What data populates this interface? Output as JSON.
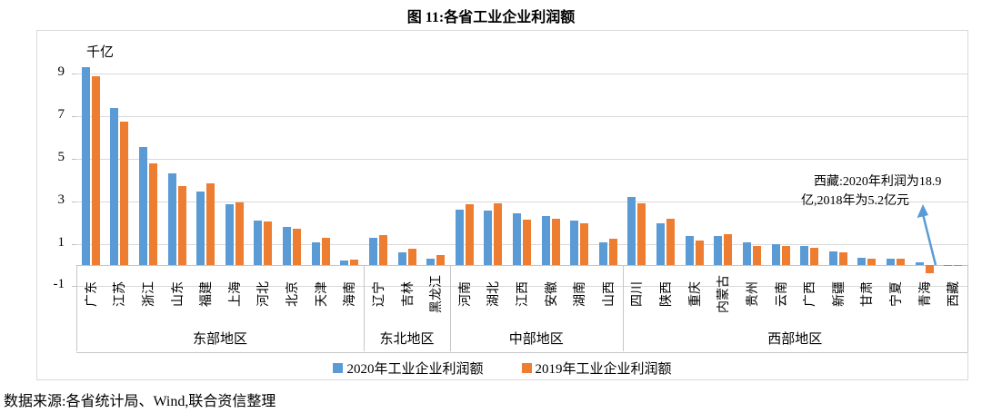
{
  "title": "图 11:各省工业企业利润额",
  "footer": "数据来源:各省统计局、Wind,联合资信整理",
  "colors": {
    "series_2020": "#5B9BD5",
    "series_2019": "#ED7D31",
    "gridline": "#D9D9D9",
    "annotation_arrow": "#5B9BD5"
  },
  "chart_data": {
    "type": "bar",
    "title": "图 11:各省工业企业利润额",
    "unit_label": "千亿",
    "ylabel": "千亿",
    "y_ticks": [
      9,
      7,
      5,
      3,
      1,
      -1
    ],
    "ylim": [
      -1.5,
      9.9
    ],
    "grid": true,
    "legend_position": "bottom",
    "categories": [
      "广东",
      "江苏",
      "浙江",
      "山东",
      "福建",
      "上海",
      "河北",
      "北京",
      "天津",
      "海南",
      "辽宁",
      "吉林",
      "黑龙江",
      "河南",
      "湖北",
      "江西",
      "安徽",
      "湖南",
      "山西",
      "四川",
      "陕西",
      "重庆",
      "内蒙古",
      "贵州",
      "云南",
      "广西",
      "新疆",
      "甘肃",
      "宁夏",
      "青海",
      "西藏"
    ],
    "groups": [
      {
        "label": "东部地区",
        "count": 10
      },
      {
        "label": "东北地区",
        "count": 3
      },
      {
        "label": "中部地区",
        "count": 6
      },
      {
        "label": "西部地区",
        "count": 12
      }
    ],
    "series": [
      {
        "name": "2020年工业企业利润额",
        "color": "#5B9BD5",
        "values": [
          9.3,
          7.4,
          5.55,
          4.3,
          3.45,
          2.85,
          2.1,
          1.8,
          1.05,
          0.2,
          1.3,
          0.6,
          0.3,
          2.6,
          2.55,
          2.45,
          2.3,
          2.1,
          1.05,
          3.2,
          1.95,
          1.35,
          1.35,
          1.05,
          1.0,
          0.9,
          0.65,
          0.35,
          0.3,
          0.12,
          0.02
        ]
      },
      {
        "name": "2019年工业企业利润额",
        "color": "#ED7D31",
        "values": [
          8.9,
          6.75,
          4.8,
          3.7,
          3.85,
          2.95,
          2.05,
          1.7,
          1.3,
          0.25,
          1.4,
          0.75,
          0.45,
          2.85,
          2.9,
          2.15,
          2.2,
          1.95,
          1.25,
          2.9,
          2.2,
          1.15,
          1.45,
          0.9,
          0.9,
          0.8,
          0.6,
          0.3,
          0.28,
          -0.4,
          0.01
        ]
      }
    ],
    "annotation": {
      "line1": "西藏:2020年利润为18.9",
      "line2": "亿,2018年为5.2亿元"
    }
  }
}
